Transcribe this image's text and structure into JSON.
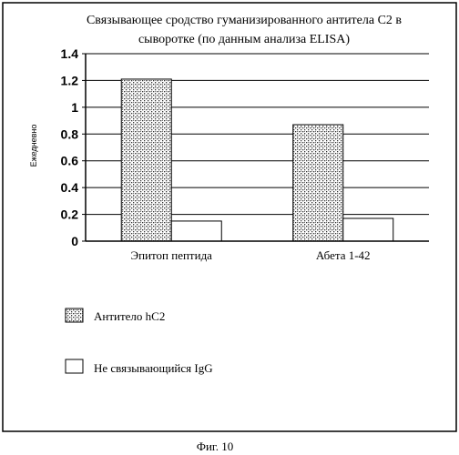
{
  "chart_data": {
    "type": "bar",
    "title_line1": "Связывающее сродство гуманизированного антитела С2 в",
    "title_line2": "сыворотке (по данным анализа ELISA)",
    "ylabel": "Ежедневно",
    "xlabel": "",
    "ylim": [
      0,
      1.4
    ],
    "yticks": [
      0,
      0.2,
      0.4,
      0.6,
      0.8,
      1,
      1.2,
      1.4
    ],
    "ytick_labels": [
      "0",
      "0.2",
      "0.4",
      "0.6",
      "0.8",
      "1",
      "1.2",
      "1.4"
    ],
    "grid": true,
    "categories": [
      "Эпитоп пептида",
      "Абета 1-42"
    ],
    "series": [
      {
        "name": "Антитело hC2",
        "values": [
          1.21,
          0.87
        ],
        "pattern": "stipple"
      },
      {
        "name": "Не связывающийся IgG",
        "values": [
          0.15,
          0.17
        ],
        "pattern": "white"
      }
    ],
    "legend_placement": "bottom"
  },
  "caption": "Фиг. 10"
}
